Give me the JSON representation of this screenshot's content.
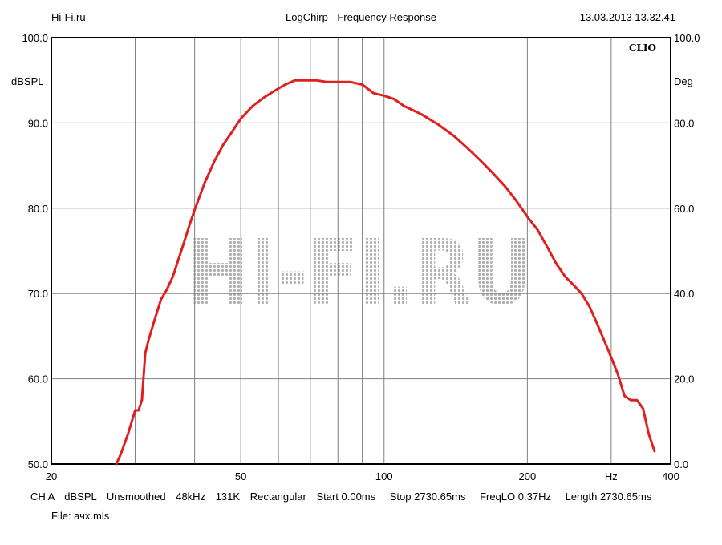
{
  "header": {
    "left": "Hi-Fi.ru",
    "center": "LogChirp - Frequency Response",
    "right": "13.03.2013 13.32.41"
  },
  "brand": "CLIO",
  "watermark": "HI-FI.RU",
  "footer": {
    "channel": "CH A",
    "unit": "dBSPL",
    "smoothing": "Unsmoothed",
    "rate": "48kHz",
    "size": "131K",
    "window": "Rectangular",
    "start": "Start 0.00ms",
    "stop": "Stop 2730.65ms",
    "freqlo": "FreqLO 0.37Hz",
    "length": "Length 2730.65ms",
    "file": "File: ачх.mls"
  },
  "colors": {
    "curve": "#e02020",
    "grid": "#808080",
    "watermark": "#b0b0b0"
  },
  "chart_data": {
    "type": "line",
    "x_scale": "log",
    "xlim": [
      20,
      400
    ],
    "x_ticks": [
      {
        "value": 20,
        "label": "20"
      },
      {
        "value": 50,
        "label": "50"
      },
      {
        "value": 100,
        "label": "100"
      },
      {
        "value": 200,
        "label": "200"
      },
      {
        "value": 400,
        "label": "400"
      }
    ],
    "x_unit_label": "Hz",
    "x_unit_at": 300,
    "x_grid": [
      30,
      40,
      50,
      60,
      70,
      80,
      90,
      100,
      200,
      300
    ],
    "ylim": [
      50,
      100
    ],
    "y_ticks": [
      {
        "value": 100,
        "label": "100.0"
      },
      {
        "value": 90,
        "label": "90.0"
      },
      {
        "value": 80,
        "label": "80.0"
      },
      {
        "value": 70,
        "label": "70.0"
      },
      {
        "value": 60,
        "label": "60.0"
      },
      {
        "value": 50,
        "label": "50.0"
      }
    ],
    "y2_ticks": [
      {
        "value": 100,
        "label": "100.0"
      },
      {
        "value": 90,
        "label": "80.0"
      },
      {
        "value": 80,
        "label": "60.0"
      },
      {
        "value": 70,
        "label": "40.0"
      },
      {
        "value": 60,
        "label": "20.0"
      },
      {
        "value": 50,
        "label": "0.0"
      }
    ],
    "ylabel": "dBSPL",
    "y2label": "Deg",
    "grid": true,
    "series": [
      {
        "x": [
          27.4,
          28,
          29,
          30,
          30.5,
          31,
          31.5,
          32,
          33,
          34,
          35,
          36,
          37,
          38,
          39,
          40,
          42,
          44,
          46,
          48,
          50,
          53,
          56,
          59,
          62,
          65,
          68,
          72,
          76,
          80,
          85,
          90,
          95,
          100,
          105,
          110,
          120,
          130,
          140,
          150,
          160,
          170,
          180,
          190,
          200,
          210,
          220,
          230,
          240,
          250,
          260,
          270,
          280,
          290,
          300,
          310,
          320,
          330,
          340,
          350,
          360,
          370
        ],
        "y": [
          50.0,
          51.2,
          53.6,
          56.3,
          56.3,
          57.5,
          63.0,
          64.5,
          67.0,
          69.3,
          70.5,
          72.0,
          74.0,
          76.0,
          78.0,
          79.8,
          83.0,
          85.5,
          87.5,
          89.0,
          90.5,
          92.0,
          93.0,
          93.8,
          94.5,
          95.0,
          95.0,
          95.0,
          94.8,
          94.8,
          94.8,
          94.5,
          93.5,
          93.2,
          92.8,
          92.0,
          91.0,
          89.8,
          88.5,
          87.0,
          85.5,
          84.0,
          82.5,
          80.8,
          79.0,
          77.5,
          75.5,
          73.5,
          72.0,
          71.0,
          70.0,
          68.5,
          66.5,
          64.5,
          62.5,
          60.5,
          58.0,
          57.5,
          57.5,
          56.5,
          53.5,
          51.5
        ]
      }
    ]
  }
}
